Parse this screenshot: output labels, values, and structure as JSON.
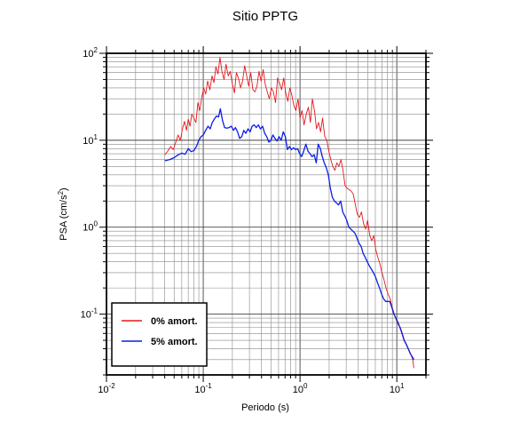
{
  "chart_data": {
    "type": "line",
    "title": "Sitio PPTG",
    "xlabel": "Periodo (s)",
    "ylabel": {
      "main": "PSA (cm/s",
      "sup": "2",
      "end": ")"
    },
    "xscale": "log",
    "yscale": "log",
    "xlim": [
      0.01,
      20
    ],
    "ylim": [
      0.02,
      100
    ],
    "grid": true,
    "legend_position": "bottom-left",
    "x_ticks": [
      {
        "base": "10",
        "exp": "-2"
      },
      {
        "base": "10",
        "exp": "-1"
      },
      {
        "base": "10",
        "exp": "0"
      },
      {
        "base": "10",
        "exp": "1"
      }
    ],
    "y_ticks": [
      {
        "base": "10",
        "exp": "-1"
      },
      {
        "base": "10",
        "exp": "0"
      },
      {
        "base": "10",
        "exp": "1"
      },
      {
        "base": "10",
        "exp": "2"
      }
    ],
    "series": [
      {
        "name": "0% amort.",
        "color": "#e8161b",
        "points": [
          [
            0.04,
            6.8
          ],
          [
            0.043,
            7.5
          ],
          [
            0.046,
            8.5
          ],
          [
            0.049,
            7.8
          ],
          [
            0.052,
            9.5
          ],
          [
            0.055,
            11.5
          ],
          [
            0.058,
            10.0
          ],
          [
            0.061,
            13.5
          ],
          [
            0.064,
            16.5
          ],
          [
            0.067,
            13.0
          ],
          [
            0.07,
            17.5
          ],
          [
            0.073,
            14.5
          ],
          [
            0.076,
            20.0
          ],
          [
            0.08,
            18.0
          ],
          [
            0.084,
            16.0
          ],
          [
            0.088,
            27.0
          ],
          [
            0.092,
            22.0
          ],
          [
            0.096,
            30.0
          ],
          [
            0.101,
            40.0
          ],
          [
            0.106,
            34.0
          ],
          [
            0.111,
            48.0
          ],
          [
            0.117,
            38.0
          ],
          [
            0.123,
            55.0
          ],
          [
            0.129,
            46.0
          ],
          [
            0.135,
            70.0
          ],
          [
            0.142,
            58.0
          ],
          [
            0.149,
            90.0
          ],
          [
            0.156,
            62.0
          ],
          [
            0.164,
            50.0
          ],
          [
            0.172,
            75.0
          ],
          [
            0.181,
            55.0
          ],
          [
            0.19,
            62.0
          ],
          [
            0.2,
            44.0
          ],
          [
            0.21,
            35.0
          ],
          [
            0.22,
            60.0
          ],
          [
            0.231,
            52.0
          ],
          [
            0.243,
            40.0
          ],
          [
            0.255,
            48.0
          ],
          [
            0.268,
            72.0
          ],
          [
            0.281,
            55.0
          ],
          [
            0.295,
            42.0
          ],
          [
            0.31,
            60.0
          ],
          [
            0.326,
            38.0
          ],
          [
            0.342,
            36.0
          ],
          [
            0.359,
            42.0
          ],
          [
            0.377,
            62.0
          ],
          [
            0.396,
            48.0
          ],
          [
            0.416,
            65.0
          ],
          [
            0.437,
            44.0
          ],
          [
            0.459,
            36.0
          ],
          [
            0.482,
            30.0
          ],
          [
            0.506,
            40.0
          ],
          [
            0.531,
            36.0
          ],
          [
            0.558,
            27.0
          ],
          [
            0.586,
            52.0
          ],
          [
            0.615,
            45.0
          ],
          [
            0.646,
            38.0
          ],
          [
            0.678,
            52.0
          ],
          [
            0.712,
            35.0
          ],
          [
            0.748,
            28.0
          ],
          [
            0.785,
            40.0
          ],
          [
            0.824,
            33.0
          ],
          [
            0.865,
            25.0
          ],
          [
            0.908,
            22.0
          ],
          [
            0.954,
            30.0
          ],
          [
            1.0,
            18.0
          ],
          [
            1.05,
            22.0
          ],
          [
            1.1,
            15.0
          ],
          [
            1.16,
            20.0
          ],
          [
            1.22,
            24.0
          ],
          [
            1.28,
            16.0
          ],
          [
            1.34,
            30.0
          ],
          [
            1.41,
            22.0
          ],
          [
            1.48,
            13.5
          ],
          [
            1.55,
            16.0
          ],
          [
            1.63,
            12.5
          ],
          [
            1.71,
            18.0
          ],
          [
            1.8,
            11.0
          ],
          [
            1.89,
            10.0
          ],
          [
            1.98,
            7.5
          ],
          [
            2.08,
            6.0
          ],
          [
            2.18,
            5.0
          ],
          [
            2.29,
            4.5
          ],
          [
            2.4,
            5.5
          ],
          [
            2.52,
            5.0
          ],
          [
            2.65,
            6.0
          ],
          [
            2.78,
            4.5
          ],
          [
            2.92,
            3.0
          ],
          [
            3.07,
            2.8
          ],
          [
            3.22,
            2.7
          ],
          [
            3.38,
            2.6
          ],
          [
            3.55,
            2.4
          ],
          [
            3.73,
            1.8
          ],
          [
            3.91,
            1.4
          ],
          [
            4.11,
            1.3
          ],
          [
            4.31,
            1.5
          ],
          [
            4.53,
            1.1
          ],
          [
            4.76,
            0.95
          ],
          [
            5.0,
            1.2
          ],
          [
            5.25,
            0.8
          ],
          [
            5.51,
            0.7
          ],
          [
            5.78,
            0.8
          ],
          [
            6.07,
            0.55
          ],
          [
            6.37,
            0.45
          ],
          [
            6.69,
            0.38
          ],
          [
            7.02,
            0.3
          ],
          [
            7.37,
            0.25
          ],
          [
            7.74,
            0.2
          ],
          [
            8.13,
            0.17
          ],
          [
            8.54,
            0.15
          ],
          [
            8.97,
            0.12
          ],
          [
            9.42,
            0.1
          ],
          [
            9.89,
            0.085
          ],
          [
            10.4,
            0.075
          ],
          [
            10.9,
            0.07
          ],
          [
            11.4,
            0.06
          ],
          [
            12.0,
            0.05
          ],
          [
            12.6,
            0.045
          ],
          [
            13.2,
            0.04
          ],
          [
            13.9,
            0.035
          ],
          [
            14.6,
            0.03
          ],
          [
            15.0,
            0.024
          ]
        ]
      },
      {
        "name": "5% amort.",
        "color": "#0a1ee8",
        "points": [
          [
            0.04,
            5.8
          ],
          [
            0.045,
            6.0
          ],
          [
            0.05,
            6.3
          ],
          [
            0.055,
            6.8
          ],
          [
            0.06,
            7.1
          ],
          [
            0.065,
            6.9
          ],
          [
            0.07,
            8.0
          ],
          [
            0.075,
            7.4
          ],
          [
            0.08,
            7.6
          ],
          [
            0.085,
            8.5
          ],
          [
            0.09,
            10.0
          ],
          [
            0.095,
            11.0
          ],
          [
            0.1,
            11.5
          ],
          [
            0.106,
            13.0
          ],
          [
            0.112,
            14.5
          ],
          [
            0.118,
            13.5
          ],
          [
            0.124,
            16.0
          ],
          [
            0.13,
            17.5
          ],
          [
            0.137,
            19.0
          ],
          [
            0.144,
            18.5
          ],
          [
            0.15,
            23.0
          ],
          [
            0.158,
            17.0
          ],
          [
            0.166,
            14.0
          ],
          [
            0.175,
            13.8
          ],
          [
            0.185,
            14.0
          ],
          [
            0.195,
            14.5
          ],
          [
            0.205,
            13.0
          ],
          [
            0.215,
            14.0
          ],
          [
            0.226,
            12.5
          ],
          [
            0.238,
            10.5
          ],
          [
            0.25,
            11.0
          ],
          [
            0.262,
            13.0
          ],
          [
            0.275,
            12.0
          ],
          [
            0.29,
            13.5
          ],
          [
            0.305,
            12.5
          ],
          [
            0.32,
            14.5
          ],
          [
            0.336,
            15.0
          ],
          [
            0.353,
            14.0
          ],
          [
            0.371,
            15.0
          ],
          [
            0.39,
            13.5
          ],
          [
            0.41,
            14.5
          ],
          [
            0.431,
            12.0
          ],
          [
            0.453,
            11.0
          ],
          [
            0.476,
            9.5
          ],
          [
            0.5,
            10.0
          ],
          [
            0.525,
            11.5
          ],
          [
            0.551,
            10.5
          ],
          [
            0.579,
            9.8
          ],
          [
            0.608,
            11.0
          ],
          [
            0.639,
            10.0
          ],
          [
            0.671,
            12.5
          ],
          [
            0.705,
            11.0
          ],
          [
            0.74,
            7.8
          ],
          [
            0.777,
            8.5
          ],
          [
            0.816,
            7.8
          ],
          [
            0.857,
            8.2
          ],
          [
            0.9,
            7.8
          ],
          [
            0.945,
            8.0
          ],
          [
            0.992,
            7.0
          ],
          [
            1.04,
            6.5
          ],
          [
            1.09,
            7.5
          ],
          [
            1.15,
            9.0
          ],
          [
            1.21,
            7.5
          ],
          [
            1.27,
            7.0
          ],
          [
            1.33,
            6.5
          ],
          [
            1.4,
            6.8
          ],
          [
            1.47,
            5.5
          ],
          [
            1.54,
            9.0
          ],
          [
            1.62,
            8.0
          ],
          [
            1.7,
            6.5
          ],
          [
            1.78,
            5.5
          ],
          [
            1.87,
            4.8
          ],
          [
            1.96,
            4.0
          ],
          [
            2.06,
            2.8
          ],
          [
            2.16,
            2.2
          ],
          [
            2.27,
            2.0
          ],
          [
            2.38,
            1.9
          ],
          [
            2.5,
            1.8
          ],
          [
            2.63,
            2.0
          ],
          [
            2.76,
            1.5
          ],
          [
            2.9,
            1.35
          ],
          [
            3.04,
            1.2
          ],
          [
            3.19,
            1.0
          ],
          [
            3.35,
            0.95
          ],
          [
            3.52,
            0.9
          ],
          [
            3.7,
            0.85
          ],
          [
            3.88,
            0.75
          ],
          [
            4.08,
            0.65
          ],
          [
            4.28,
            0.6
          ],
          [
            4.49,
            0.5
          ],
          [
            4.72,
            0.45
          ],
          [
            4.95,
            0.4
          ],
          [
            5.2,
            0.36
          ],
          [
            5.46,
            0.33
          ],
          [
            5.73,
            0.3
          ],
          [
            6.02,
            0.27
          ],
          [
            6.32,
            0.23
          ],
          [
            6.63,
            0.2
          ],
          [
            6.96,
            0.17
          ],
          [
            7.31,
            0.15
          ],
          [
            7.68,
            0.14
          ],
          [
            8.06,
            0.14
          ],
          [
            8.46,
            0.14
          ],
          [
            8.88,
            0.12
          ],
          [
            9.33,
            0.1
          ],
          [
            9.79,
            0.09
          ],
          [
            10.3,
            0.08
          ],
          [
            10.8,
            0.07
          ],
          [
            11.3,
            0.06
          ],
          [
            11.9,
            0.05
          ],
          [
            12.5,
            0.045
          ],
          [
            13.1,
            0.04
          ],
          [
            13.8,
            0.035
          ],
          [
            14.5,
            0.032
          ],
          [
            15.0,
            0.03
          ]
        ]
      }
    ]
  }
}
